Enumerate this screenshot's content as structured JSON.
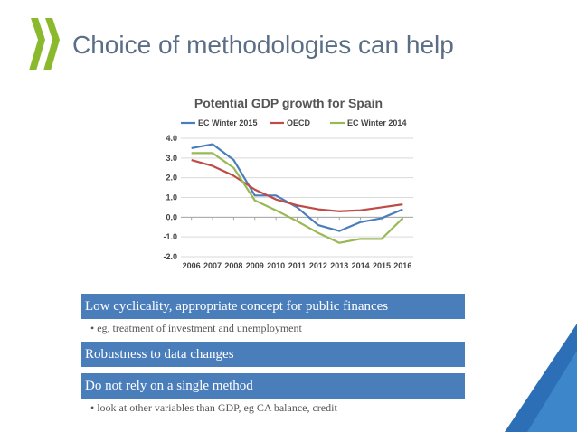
{
  "slide": {
    "title": "Choice of methodologies can help",
    "boxes": [
      {
        "label": "Low cyclicality, appropriate concept for public finances",
        "sub": "• eg, treatment of investment and unemployment"
      },
      {
        "label": "Robustness to data changes",
        "sub": ""
      },
      {
        "label": "Do not rely on a single method",
        "sub": "• look at other variables than GDP, eg CA balance, credit"
      }
    ]
  },
  "colors": {
    "logo": "#8bb92d",
    "corner": "#2c6fb6",
    "boxes": "#4a7ebb"
  },
  "chart_data": {
    "type": "line",
    "title": "Potential GDP growth for Spain",
    "xlabel": "",
    "ylabel": "",
    "categories": [
      "2006",
      "2007",
      "2008",
      "2009",
      "2010",
      "2011",
      "2012",
      "2013",
      "2014",
      "2015",
      "2016"
    ],
    "ylim": [
      -2.0,
      4.0
    ],
    "yticks": [
      4.0,
      3.0,
      2.0,
      1.0,
      0.0,
      -1.0,
      -2.0
    ],
    "ytick_labels": [
      "4.0",
      "3.0",
      "2.0",
      "1.0",
      "0.0",
      "-1.0",
      "-2.0"
    ],
    "grid": true,
    "legend": "top",
    "series": [
      {
        "name": "EC Winter 2015",
        "color": "#4a7ebb",
        "values": [
          3.5,
          3.7,
          2.9,
          1.1,
          1.1,
          0.5,
          -0.4,
          -0.7,
          -0.25,
          -0.05,
          0.4
        ]
      },
      {
        "name": "OECD",
        "color": "#be4b48",
        "values": [
          2.9,
          2.6,
          2.1,
          1.4,
          0.9,
          0.6,
          0.4,
          0.3,
          0.35,
          0.5,
          0.65
        ]
      },
      {
        "name": "EC Winter 2014",
        "color": "#98b954",
        "values": [
          3.25,
          3.25,
          2.5,
          0.85,
          0.35,
          -0.2,
          -0.8,
          -1.3,
          -1.1,
          -1.1,
          -0.05
        ]
      }
    ]
  }
}
